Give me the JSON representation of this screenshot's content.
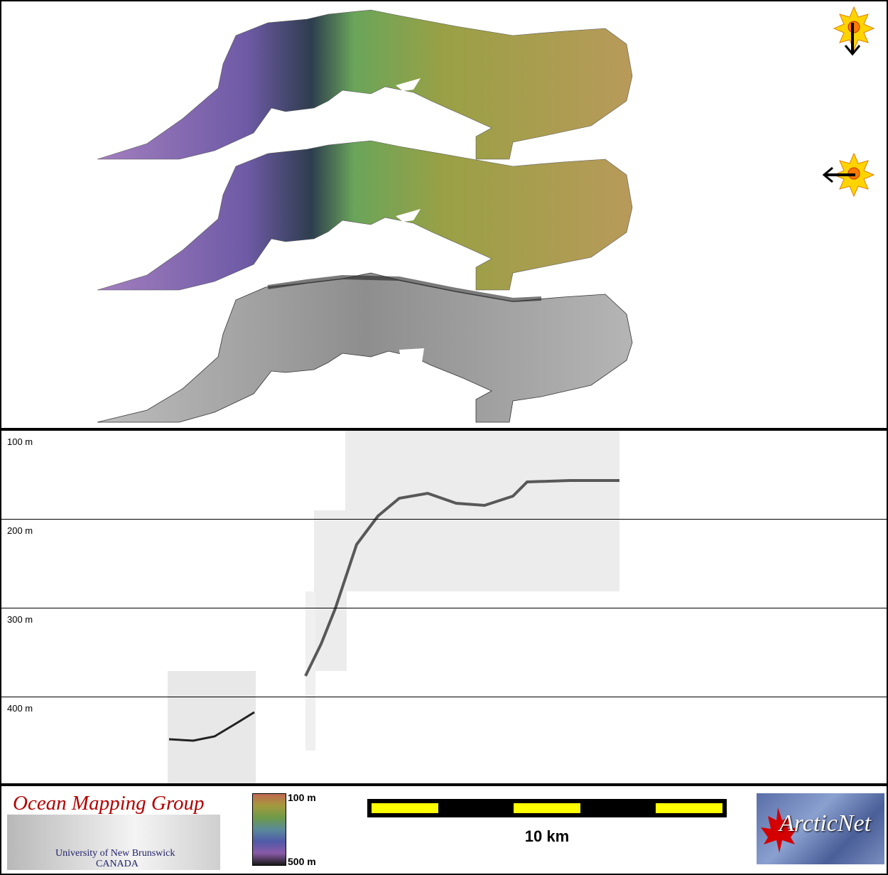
{
  "depth_axis": {
    "labels": [
      "100 m",
      "200 m",
      "300 m",
      "400 m"
    ]
  },
  "colorbar": {
    "top_label": "100 m",
    "bottom_label": "500 m"
  },
  "scale_bar": {
    "label": "10 km"
  },
  "logos": {
    "omg_title": "Ocean Mapping Group",
    "omg_line1": "University of New Brunswick",
    "omg_line2": "CANADA",
    "arcticnet": "ArcticNet"
  },
  "colors": {
    "border": "#000000",
    "scale_fill": "#ffff00",
    "omg_red": "#b30000"
  },
  "icons": [
    "sun-illumination-icon-north",
    "sun-illumination-icon-east"
  ]
}
